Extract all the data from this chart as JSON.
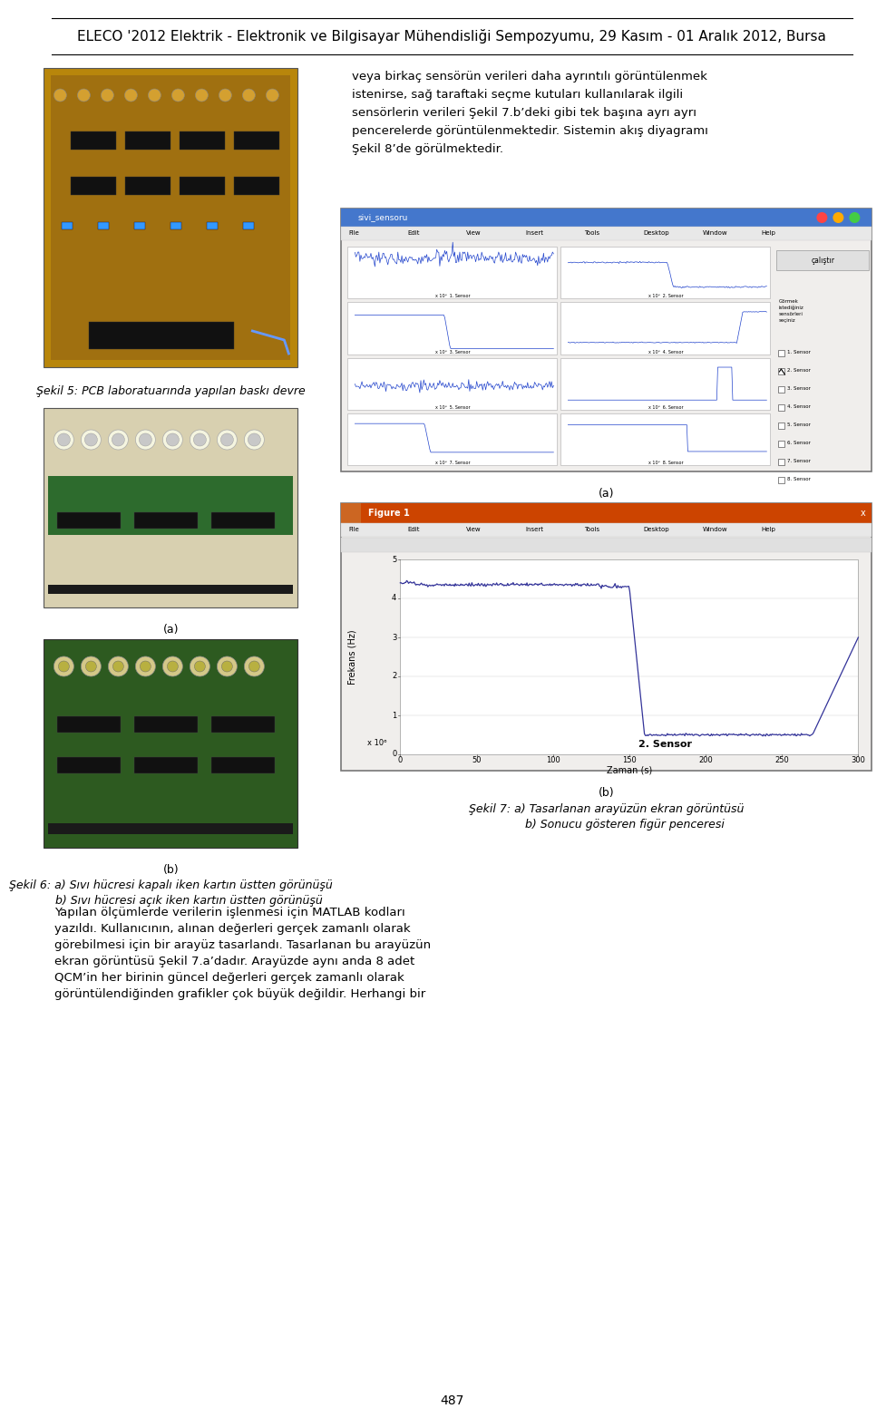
{
  "header_text": "ELECO '2012 Elektrik - Elektronik ve Bilgisayar Mühendisliği Sempozyumu, 29 Kasım - 01 Aralık 2012, Bursa",
  "page_number": "487",
  "bg_color": "#ffffff",
  "body_text_right_col": "veya birkaç sensörün verileri daha ayrıntılı görüntülenmek\nistenirse, sağ taraftaki seçme kutuları kullanılarak ilgili\nsensörlerin verileri Şekil 7.b’deki gibi tek başına ayrı ayrı\npencerelerde görüntülenmektedir. Sistemin akış diyagramı\nŞekil 8’de görülmektedir.",
  "caption_fig5": "Şekil 5: PCB laboratuarında yapılan baskı devre",
  "caption_fig6a": "(a)",
  "caption_fig6b": "(b)",
  "caption_fig6_line1": "Şekil 6: a) Sıvı hücresi kapalı iken kartın üstten görünüşü",
  "caption_fig6_line2": "          b) Sıvı hücresi açık iken kartın üstten görünüşü",
  "caption_fig7a": "(a)",
  "caption_fig7b": "(b)",
  "caption_fig7_line1": "Şekil 7: a) Tasarlanan arayüzün ekran görüntüsü",
  "caption_fig7_line2": "          b) Sonucu gösteren figür penceresi",
  "bottom_text_line1": "Yapılan ölçümlerde verilerin işlenmesi için MATLAB kodları",
  "bottom_text_line2": "yazıldı. Kullanıcının, alınan değerleri gerçek zamanlı olarak",
  "bottom_text_line3": "görebilmesi için bir arayüz tasarlandı. Tasarlanan bu arayüzün",
  "bottom_text_line4": "ekran görüntüsü Şekil 7.a’dadır. Arayüzde aynı anda 8 adet",
  "bottom_text_line5": "QCM’in her birinin güncel değerleri gerçek zamanlı olarak",
  "bottom_text_line6": "görüntülendiğinden grafikler çok büyük değildir. Herhangi bir",
  "font_size_header": 11,
  "font_size_body": 9.5,
  "font_size_caption": 9,
  "font_size_page": 10
}
